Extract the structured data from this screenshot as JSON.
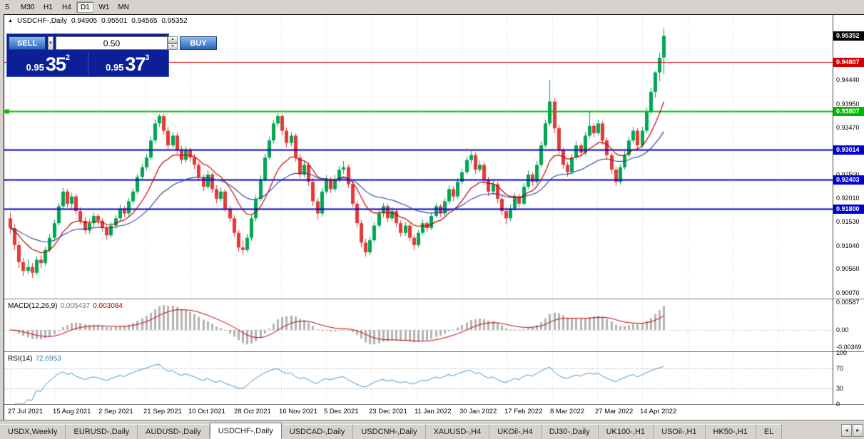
{
  "icons": {
    "collapse": "▲",
    "dropdown": "▼",
    "spin_up": "▲",
    "spin_down": "▼",
    "tab_left": "◄",
    "tab_right": "►"
  },
  "toolbar": {
    "items": [
      "5",
      "M30",
      "H1",
      "H4",
      "D1",
      "W1",
      "MN"
    ],
    "active_index": 4
  },
  "chart": {
    "title": {
      "symbol": "USDCHF-,Daily",
      "open": "0.94905",
      "high": "0.95501",
      "low": "0.94565",
      "close": "0.95352"
    },
    "one_click": {
      "sell_label": "SELL",
      "buy_label": "BUY",
      "volume": "0.50",
      "bid": {
        "base": "0.95",
        "big": "35",
        "sup": "2"
      },
      "ask": {
        "base": "0.95",
        "big": "37",
        "sup": "3"
      }
    }
  },
  "colors": {
    "up": "#00a651",
    "down": "#e23a34",
    "ma_fast": "#c00000",
    "ma_slow": "#24409a",
    "macd_bar": "#b2b2b2",
    "macd_signal": "#c00000",
    "rsi_line": "#4a90c4",
    "grid": "#d8d8d8",
    "level_red": "#d40000",
    "level_green": "#00c400",
    "level_blue": "#0000d0"
  },
  "chart_data": {
    "type": "candlestick+indicators",
    "symbol": "USDCHF-",
    "timeframe": "Daily",
    "main_range": [
      0.8995,
      0.9578
    ],
    "x_labels": [
      "27 Jul 2021",
      "15 Aug 2021",
      "2 Sep 2021",
      "21 Sep 2021",
      "10 Oct 2021",
      "28 Oct 2021",
      "16 Nov 2021",
      "5 Dec 2021",
      "23 Dec 2021",
      "11 Jan 2022",
      "30 Jan 2022",
      "17 Feb 2022",
      "8 Mar 2022",
      "27 Mar 2022",
      "14 Apr 2022"
    ],
    "price_scale": [
      "0.94820",
      "0.94440",
      "0.93950",
      "0.93470",
      "0.92990",
      "0.92500",
      "0.92010",
      "0.91530",
      "0.91040",
      "0.90560",
      "0.90070"
    ],
    "badges": [
      {
        "text": "0.95352",
        "value": 0.95352,
        "bg": "#000000",
        "fg": "#ffffff"
      },
      {
        "text": "0.94807",
        "value": 0.94807,
        "bg": "#d40000",
        "fg": "#ffffff"
      },
      {
        "text": "0.93807",
        "value": 0.93807,
        "bg": "#00b800",
        "fg": "#ffffff"
      },
      {
        "text": "0.93014",
        "value": 0.93014,
        "bg": "#0000d0",
        "fg": "#ffffff"
      },
      {
        "text": "0.92403",
        "value": 0.92403,
        "bg": "#0000d0",
        "fg": "#ffffff"
      },
      {
        "text": "0.91800",
        "value": 0.918,
        "bg": "#0000d0",
        "fg": "#ffffff"
      }
    ],
    "levels": [
      {
        "value": 0.94807,
        "color": "#d40000",
        "width": 1,
        "marker": false
      },
      {
        "value": 0.93807,
        "color": "#00c400",
        "width": 2,
        "marker": true
      },
      {
        "value": 0.93014,
        "color": "#0000d0",
        "width": 2,
        "marker": false
      },
      {
        "value": 0.92403,
        "color": "#0000d0",
        "width": 2,
        "marker": false
      },
      {
        "value": 0.918,
        "color": "#0000d0",
        "width": 2,
        "marker": false
      }
    ],
    "macd": {
      "label": "MACD(12,26,9)",
      "value_main": "0.005437",
      "value_signal": "0.003084",
      "params": [
        12,
        26,
        9
      ],
      "scale": [
        "0.00587",
        "0.00",
        "-0.00369"
      ],
      "range": [
        -0.0046,
        0.0064
      ]
    },
    "rsi": {
      "label": "RSI(14)",
      "value": "72.6953",
      "period": 14,
      "scale": [
        "100",
        "70",
        "30",
        "0"
      ],
      "levels": [
        70,
        30
      ]
    },
    "candles": [
      [
        0.916,
        0.9172,
        0.9128,
        0.914
      ],
      [
        0.914,
        0.9148,
        0.9095,
        0.9105
      ],
      [
        0.9105,
        0.9112,
        0.9058,
        0.907
      ],
      [
        0.907,
        0.9078,
        0.9042,
        0.9052
      ],
      [
        0.9052,
        0.9075,
        0.9045,
        0.906
      ],
      [
        0.906,
        0.9068,
        0.9038,
        0.9048
      ],
      [
        0.9048,
        0.9082,
        0.9044,
        0.9075
      ],
      [
        0.9075,
        0.9085,
        0.9058,
        0.9068
      ],
      [
        0.9068,
        0.9102,
        0.9062,
        0.9095
      ],
      [
        0.9095,
        0.9128,
        0.909,
        0.912
      ],
      [
        0.912,
        0.9158,
        0.9112,
        0.915
      ],
      [
        0.915,
        0.9192,
        0.9145,
        0.9185
      ],
      [
        0.9185,
        0.9222,
        0.9178,
        0.9215
      ],
      [
        0.9215,
        0.922,
        0.9182,
        0.919
      ],
      [
        0.919,
        0.9212,
        0.918,
        0.9205
      ],
      [
        0.9205,
        0.921,
        0.9168,
        0.9175
      ],
      [
        0.9175,
        0.9182,
        0.9148,
        0.9155
      ],
      [
        0.9155,
        0.9162,
        0.9128,
        0.9135
      ],
      [
        0.9135,
        0.9158,
        0.9128,
        0.915
      ],
      [
        0.915,
        0.9172,
        0.9142,
        0.9165
      ],
      [
        0.9165,
        0.917,
        0.9146,
        0.9155
      ],
      [
        0.9155,
        0.916,
        0.9132,
        0.914
      ],
      [
        0.914,
        0.9146,
        0.9116,
        0.9125
      ],
      [
        0.9125,
        0.9152,
        0.912,
        0.9145
      ],
      [
        0.9145,
        0.9168,
        0.9138,
        0.916
      ],
      [
        0.916,
        0.9188,
        0.9154,
        0.918
      ],
      [
        0.918,
        0.9186,
        0.9162,
        0.917
      ],
      [
        0.917,
        0.9202,
        0.9164,
        0.9195
      ],
      [
        0.9195,
        0.9222,
        0.919,
        0.9215
      ],
      [
        0.9215,
        0.9252,
        0.921,
        0.9245
      ],
      [
        0.9245,
        0.9272,
        0.9238,
        0.9265
      ],
      [
        0.9265,
        0.9292,
        0.9258,
        0.9285
      ],
      [
        0.9285,
        0.9328,
        0.928,
        0.932
      ],
      [
        0.932,
        0.9362,
        0.9315,
        0.9355
      ],
      [
        0.9355,
        0.9375,
        0.9348,
        0.937
      ],
      [
        0.937,
        0.9374,
        0.9332,
        0.934
      ],
      [
        0.934,
        0.9348,
        0.9302,
        0.931
      ],
      [
        0.931,
        0.9338,
        0.9304,
        0.933
      ],
      [
        0.933,
        0.9336,
        0.9292,
        0.93
      ],
      [
        0.93,
        0.9308,
        0.9272,
        0.928
      ],
      [
        0.928,
        0.9308,
        0.9274,
        0.93
      ],
      [
        0.93,
        0.9306,
        0.9276,
        0.9285
      ],
      [
        0.9285,
        0.9292,
        0.9262,
        0.927
      ],
      [
        0.927,
        0.9276,
        0.9236,
        0.9245
      ],
      [
        0.9245,
        0.9252,
        0.9216,
        0.9225
      ],
      [
        0.9225,
        0.9258,
        0.922,
        0.925
      ],
      [
        0.925,
        0.9255,
        0.9212,
        0.922
      ],
      [
        0.922,
        0.9228,
        0.9192,
        0.92
      ],
      [
        0.92,
        0.9224,
        0.9194,
        0.9215
      ],
      [
        0.9215,
        0.922,
        0.9172,
        0.918
      ],
      [
        0.918,
        0.9186,
        0.9152,
        0.916
      ],
      [
        0.916,
        0.9166,
        0.9122,
        0.913
      ],
      [
        0.913,
        0.9136,
        0.9092,
        0.91
      ],
      [
        0.91,
        0.9115,
        0.9085,
        0.9095
      ],
      [
        0.9095,
        0.9128,
        0.909,
        0.912
      ],
      [
        0.912,
        0.9168,
        0.9114,
        0.916
      ],
      [
        0.916,
        0.9208,
        0.9155,
        0.92
      ],
      [
        0.92,
        0.9248,
        0.9195,
        0.924
      ],
      [
        0.924,
        0.9292,
        0.9235,
        0.9285
      ],
      [
        0.9285,
        0.9328,
        0.928,
        0.932
      ],
      [
        0.932,
        0.9362,
        0.9315,
        0.9355
      ],
      [
        0.9355,
        0.9376,
        0.9348,
        0.937
      ],
      [
        0.937,
        0.9375,
        0.9332,
        0.934
      ],
      [
        0.934,
        0.9346,
        0.9306,
        0.9315
      ],
      [
        0.9315,
        0.9338,
        0.9308,
        0.933
      ],
      [
        0.933,
        0.9335,
        0.9276,
        0.9285
      ],
      [
        0.9285,
        0.9292,
        0.9242,
        0.925
      ],
      [
        0.925,
        0.9278,
        0.9244,
        0.927
      ],
      [
        0.927,
        0.9275,
        0.9226,
        0.9235
      ],
      [
        0.9235,
        0.9242,
        0.9186,
        0.9195
      ],
      [
        0.9195,
        0.9202,
        0.9158,
        0.917
      ],
      [
        0.917,
        0.9222,
        0.9164,
        0.9215
      ],
      [
        0.9215,
        0.9248,
        0.921,
        0.924
      ],
      [
        0.924,
        0.9246,
        0.9212,
        0.922
      ],
      [
        0.922,
        0.9248,
        0.9215,
        0.924
      ],
      [
        0.924,
        0.9268,
        0.9234,
        0.926
      ],
      [
        0.926,
        0.9278,
        0.9252,
        0.9265
      ],
      [
        0.9265,
        0.927,
        0.9222,
        0.923
      ],
      [
        0.923,
        0.9236,
        0.9182,
        0.919
      ],
      [
        0.919,
        0.9196,
        0.9142,
        0.915
      ],
      [
        0.915,
        0.9156,
        0.91,
        0.911
      ],
      [
        0.911,
        0.9118,
        0.9082,
        0.909
      ],
      [
        0.909,
        0.9122,
        0.9085,
        0.9115
      ],
      [
        0.9115,
        0.9152,
        0.911,
        0.9145
      ],
      [
        0.9145,
        0.9178,
        0.914,
        0.917
      ],
      [
        0.917,
        0.9192,
        0.9162,
        0.9185
      ],
      [
        0.9185,
        0.919,
        0.9152,
        0.916
      ],
      [
        0.916,
        0.9182,
        0.9154,
        0.9175
      ],
      [
        0.9175,
        0.918,
        0.9142,
        0.915
      ],
      [
        0.915,
        0.9156,
        0.9122,
        0.913
      ],
      [
        0.913,
        0.9152,
        0.9124,
        0.9145
      ],
      [
        0.9145,
        0.915,
        0.9112,
        0.912
      ],
      [
        0.912,
        0.9126,
        0.9095,
        0.9105
      ],
      [
        0.9105,
        0.9136,
        0.91,
        0.913
      ],
      [
        0.913,
        0.9158,
        0.9125,
        0.915
      ],
      [
        0.915,
        0.9155,
        0.9132,
        0.914
      ],
      [
        0.914,
        0.9172,
        0.9135,
        0.9165
      ],
      [
        0.9165,
        0.9192,
        0.916,
        0.9185
      ],
      [
        0.9185,
        0.919,
        0.9162,
        0.917
      ],
      [
        0.917,
        0.9202,
        0.9165,
        0.9195
      ],
      [
        0.9195,
        0.9228,
        0.919,
        0.922
      ],
      [
        0.922,
        0.9226,
        0.9196,
        0.9205
      ],
      [
        0.9205,
        0.9242,
        0.92,
        0.9235
      ],
      [
        0.9235,
        0.9262,
        0.923,
        0.9255
      ],
      [
        0.9255,
        0.9288,
        0.925,
        0.928
      ],
      [
        0.928,
        0.9298,
        0.9272,
        0.929
      ],
      [
        0.929,
        0.9295,
        0.9252,
        0.926
      ],
      [
        0.926,
        0.9278,
        0.9254,
        0.927
      ],
      [
        0.927,
        0.9275,
        0.9232,
        0.924
      ],
      [
        0.924,
        0.9246,
        0.9206,
        0.9215
      ],
      [
        0.9215,
        0.9238,
        0.921,
        0.923
      ],
      [
        0.923,
        0.9235,
        0.9192,
        0.92
      ],
      [
        0.92,
        0.9206,
        0.9166,
        0.9175
      ],
      [
        0.9175,
        0.9182,
        0.9148,
        0.916
      ],
      [
        0.916,
        0.9188,
        0.9155,
        0.918
      ],
      [
        0.918,
        0.9212,
        0.9175,
        0.9205
      ],
      [
        0.9205,
        0.921,
        0.9182,
        0.919
      ],
      [
        0.919,
        0.9232,
        0.9185,
        0.9225
      ],
      [
        0.9225,
        0.9258,
        0.922,
        0.925
      ],
      [
        0.925,
        0.9255,
        0.9226,
        0.9235
      ],
      [
        0.9235,
        0.9278,
        0.923,
        0.927
      ],
      [
        0.927,
        0.9318,
        0.9265,
        0.931
      ],
      [
        0.931,
        0.9362,
        0.9305,
        0.9355
      ],
      [
        0.9355,
        0.9445,
        0.935,
        0.94
      ],
      [
        0.94,
        0.9408,
        0.9335,
        0.9345
      ],
      [
        0.9345,
        0.9352,
        0.9292,
        0.93
      ],
      [
        0.93,
        0.9306,
        0.9262,
        0.927
      ],
      [
        0.927,
        0.9276,
        0.9245,
        0.9255
      ],
      [
        0.9255,
        0.9292,
        0.925,
        0.9285
      ],
      [
        0.9285,
        0.9318,
        0.928,
        0.931
      ],
      [
        0.931,
        0.9315,
        0.9286,
        0.9295
      ],
      [
        0.9295,
        0.9338,
        0.929,
        0.933
      ],
      [
        0.933,
        0.938,
        0.9325,
        0.935
      ],
      [
        0.935,
        0.9356,
        0.9326,
        0.9335
      ],
      [
        0.9335,
        0.9362,
        0.933,
        0.9355
      ],
      [
        0.9355,
        0.936,
        0.9312,
        0.932
      ],
      [
        0.932,
        0.9326,
        0.9282,
        0.929
      ],
      [
        0.929,
        0.9296,
        0.9252,
        0.926
      ],
      [
        0.926,
        0.9266,
        0.9226,
        0.9235
      ],
      [
        0.9235,
        0.9272,
        0.923,
        0.9265
      ],
      [
        0.9265,
        0.9298,
        0.926,
        0.929
      ],
      [
        0.929,
        0.9328,
        0.9285,
        0.932
      ],
      [
        0.932,
        0.9348,
        0.9315,
        0.934
      ],
      [
        0.934,
        0.9345,
        0.9302,
        0.931
      ],
      [
        0.931,
        0.9348,
        0.9305,
        0.934
      ],
      [
        0.934,
        0.9388,
        0.9335,
        0.938
      ],
      [
        0.938,
        0.9428,
        0.9375,
        0.942
      ],
      [
        0.942,
        0.9462,
        0.9408,
        0.946
      ],
      [
        0.946,
        0.95,
        0.9442,
        0.949
      ],
      [
        0.94905,
        0.95501,
        0.94565,
        0.95352
      ]
    ]
  },
  "tabs": {
    "items": [
      "USDX,Weekly",
      "EURUSD-,Daily",
      "AUDUSD-,Daily",
      "USDCHF-,Daily",
      "USDCAD-,Daily",
      "USDCNH-,Daily",
      "XAUUSD-,H4",
      "UKOil-,H4",
      "DJ30-,Daily",
      "UK100-,H1",
      "USOil-,H1",
      "HK50-,H1",
      "EL"
    ],
    "active_index": 3
  }
}
